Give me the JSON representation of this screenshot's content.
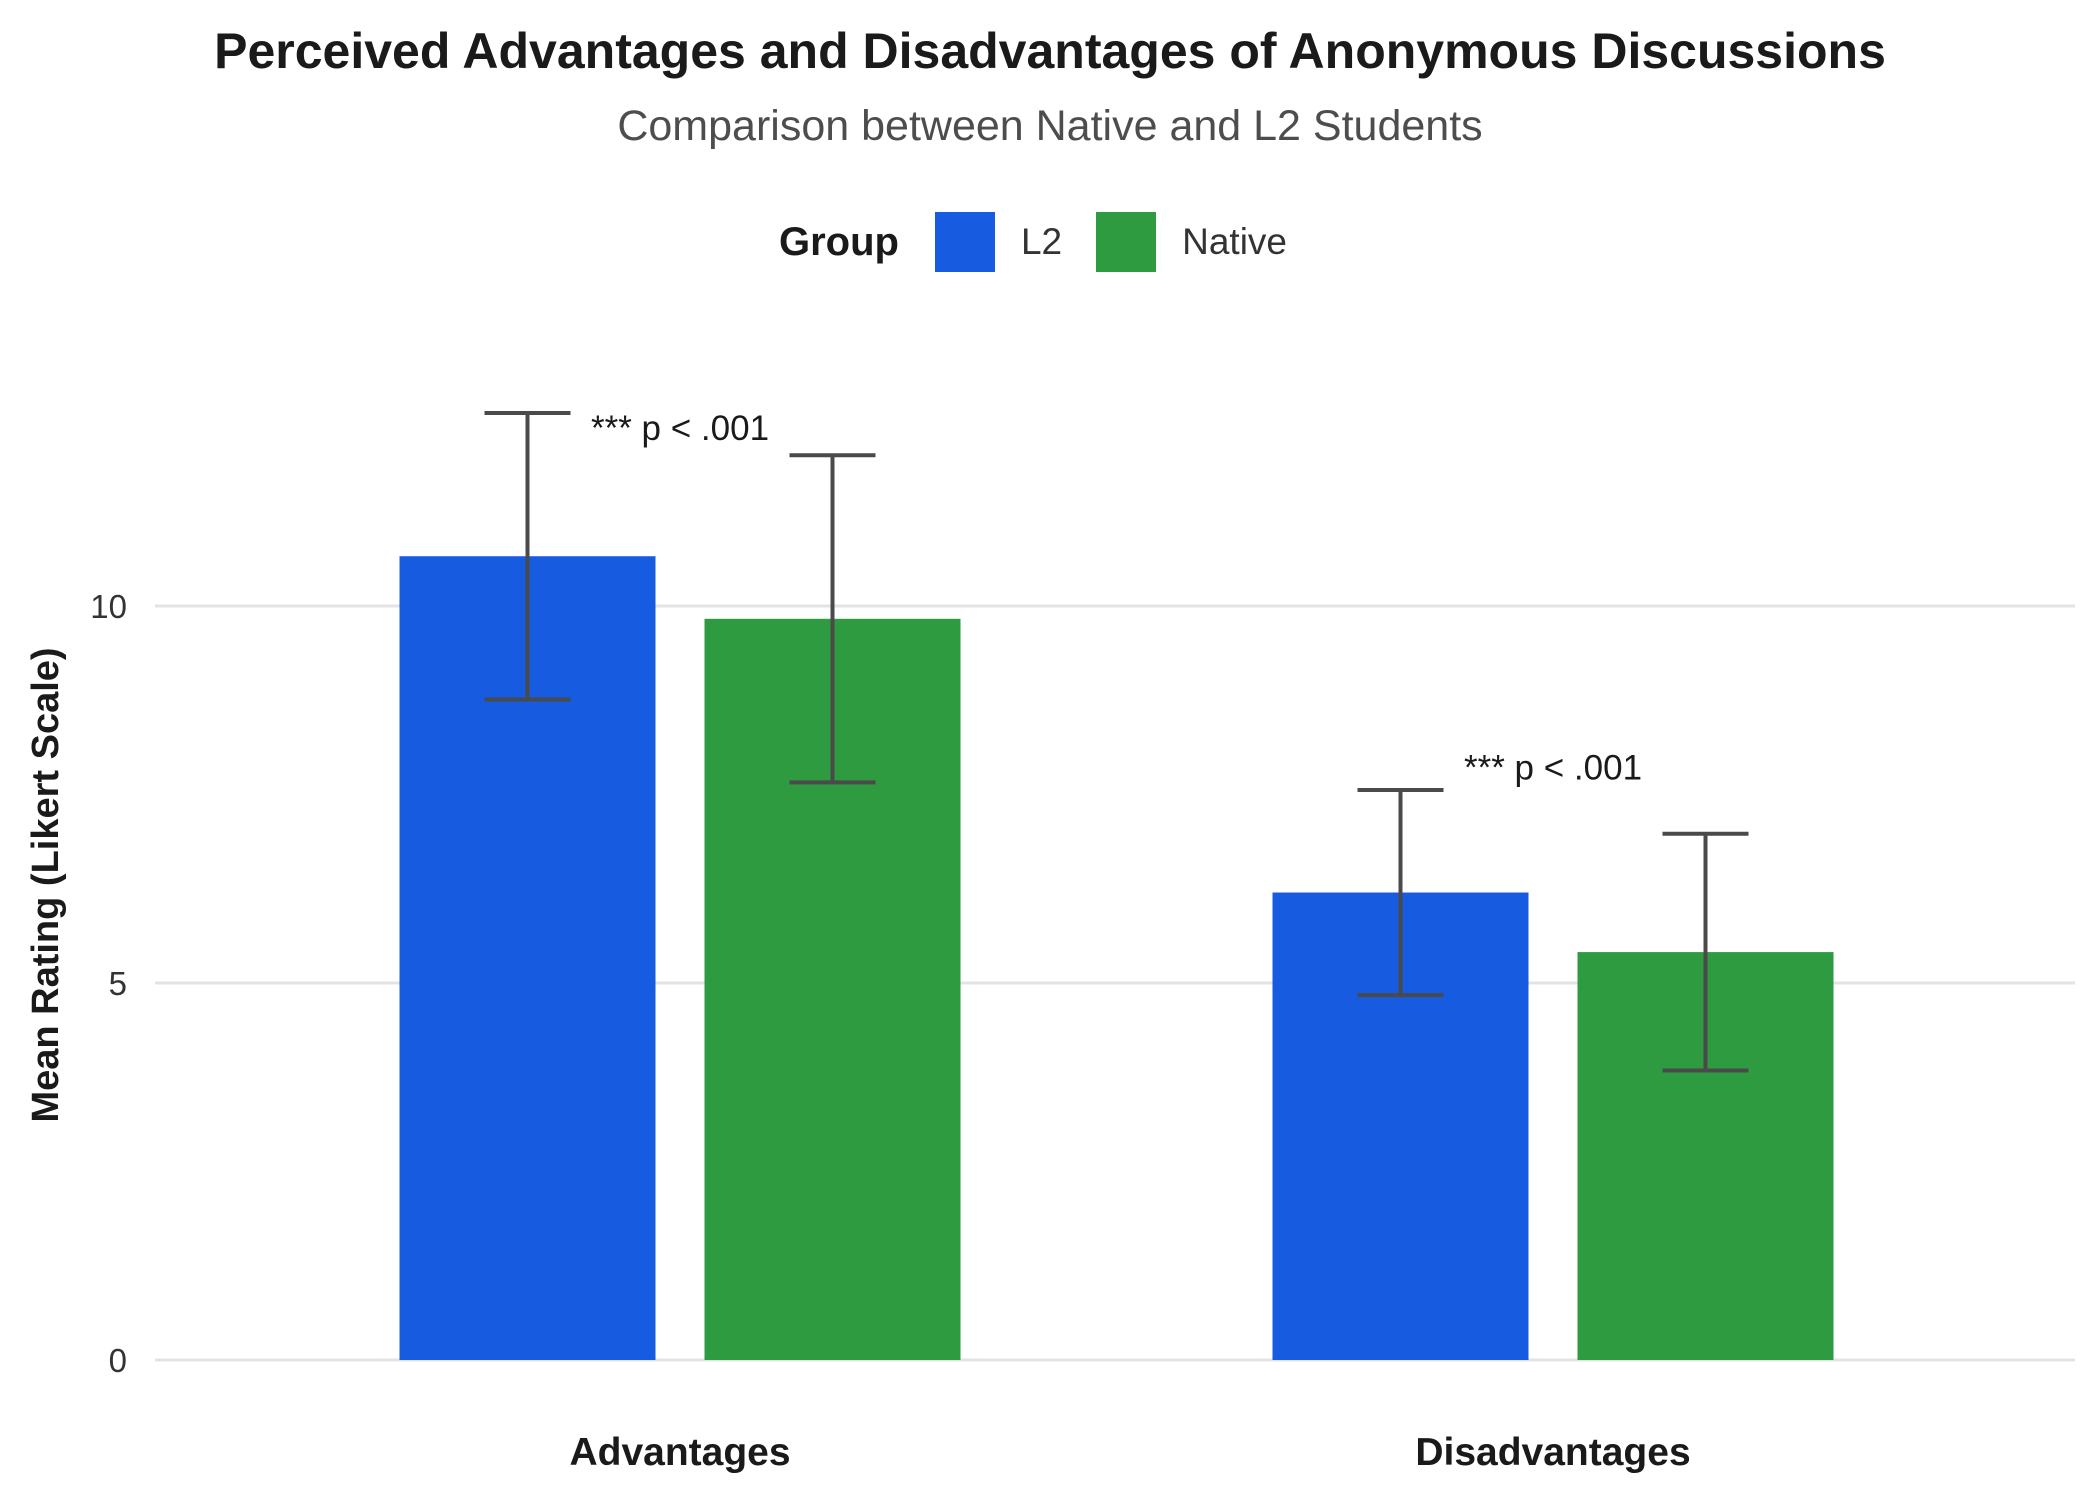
{
  "chart_data": {
    "type": "bar",
    "title": "Perceived Advantages and Disadvantages of Anonymous Discussions",
    "subtitle": "Comparison between Native and L2 Students",
    "xlabel": "",
    "ylabel": "Mean Rating (Likert Scale)",
    "categories": [
      "Advantages",
      "Disadvantages"
    ],
    "ylim": [
      0,
      12.6
    ],
    "yticks": [
      0,
      5,
      10
    ],
    "grid": "horizontal",
    "legend": {
      "title": "Group",
      "position": "top"
    },
    "series": [
      {
        "name": "L2",
        "color": "#175CE0",
        "values": [
          10.66,
          6.2
        ],
        "error": [
          1.9,
          1.36
        ]
      },
      {
        "name": "Native",
        "color": "#2E9B41",
        "values": [
          9.83,
          5.41
        ],
        "error": [
          2.17,
          1.57
        ]
      }
    ],
    "annotations": [
      {
        "category": "Advantages",
        "text": "*** p < .001",
        "y": 12.2
      },
      {
        "category": "Disadvantages",
        "text": "*** p < .001",
        "y": 7.7
      }
    ]
  }
}
